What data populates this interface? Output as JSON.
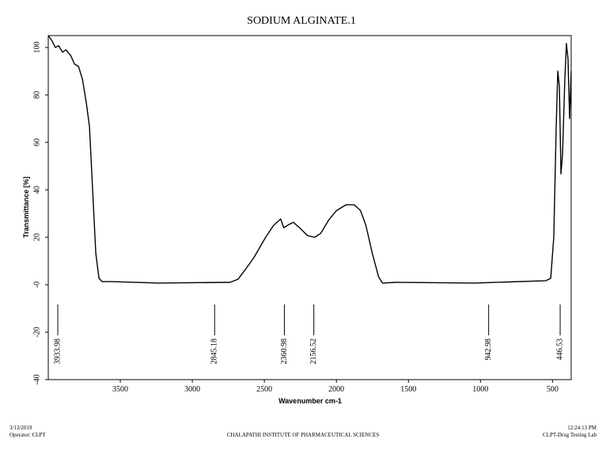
{
  "chart_data": {
    "type": "line",
    "title": "SODIUM ALGINATE.1",
    "x_label": "Wavenumber cm-1",
    "y_label": "Transmittance [%]",
    "x": [
      4000,
      3973,
      3951,
      3928,
      3900,
      3878,
      3845,
      3818,
      3790,
      3763,
      3736,
      3714,
      3692,
      3670,
      3648,
      3626,
      3560,
      3231,
      2738,
      2683,
      2628,
      2574,
      2491,
      2436,
      2387,
      2365,
      2332,
      2299,
      2255,
      2201,
      2151,
      2108,
      2053,
      1998,
      1932,
      1877,
      1833,
      1795,
      1751,
      1707,
      1680,
      1587,
      1039,
      545,
      512,
      491,
      474,
      463,
      452,
      441,
      430,
      414,
      403,
      392,
      381,
      370
    ],
    "values": [
      105,
      102.7,
      100,
      100.7,
      98,
      99,
      96.7,
      93,
      92,
      86.7,
      76.7,
      66.7,
      40,
      13.3,
      2.7,
      1.3,
      1.3,
      0.7,
      1,
      2.3,
      6.7,
      11.3,
      20,
      25,
      27.7,
      24,
      25.3,
      26.3,
      24,
      20.7,
      20,
      21.7,
      27.3,
      31.3,
      33.7,
      33.7,
      31.3,
      25,
      13.3,
      3.3,
      0.7,
      1,
      0.7,
      1.7,
      2.7,
      20,
      66.7,
      90,
      83.3,
      46.7,
      55,
      86.7,
      101.7,
      95,
      70,
      90
    ],
    "color": "#000000",
    "xlim": [
      4000,
      370
    ],
    "xticks": [
      3500,
      3000,
      2500,
      2000,
      1500,
      1000,
      500
    ],
    "ylim": [
      -40,
      105
    ],
    "yticks": [
      -40,
      -20,
      {
        "value": 0,
        "label": "-0"
      },
      20,
      40,
      60,
      80,
      100
    ],
    "peaks": [
      3933.98,
      2845.18,
      2360.98,
      2156.52,
      942.98,
      446.53
    ]
  },
  "footer": {
    "date": "3/13/2019",
    "operator": "Operator: CLPT",
    "institute": "CHALAPATHI INSTITUTE OF PHARMACEUTICAL SCIENCES",
    "time": "12:24:13 PM",
    "lab": "CLPT-Drug Testing Lab"
  }
}
